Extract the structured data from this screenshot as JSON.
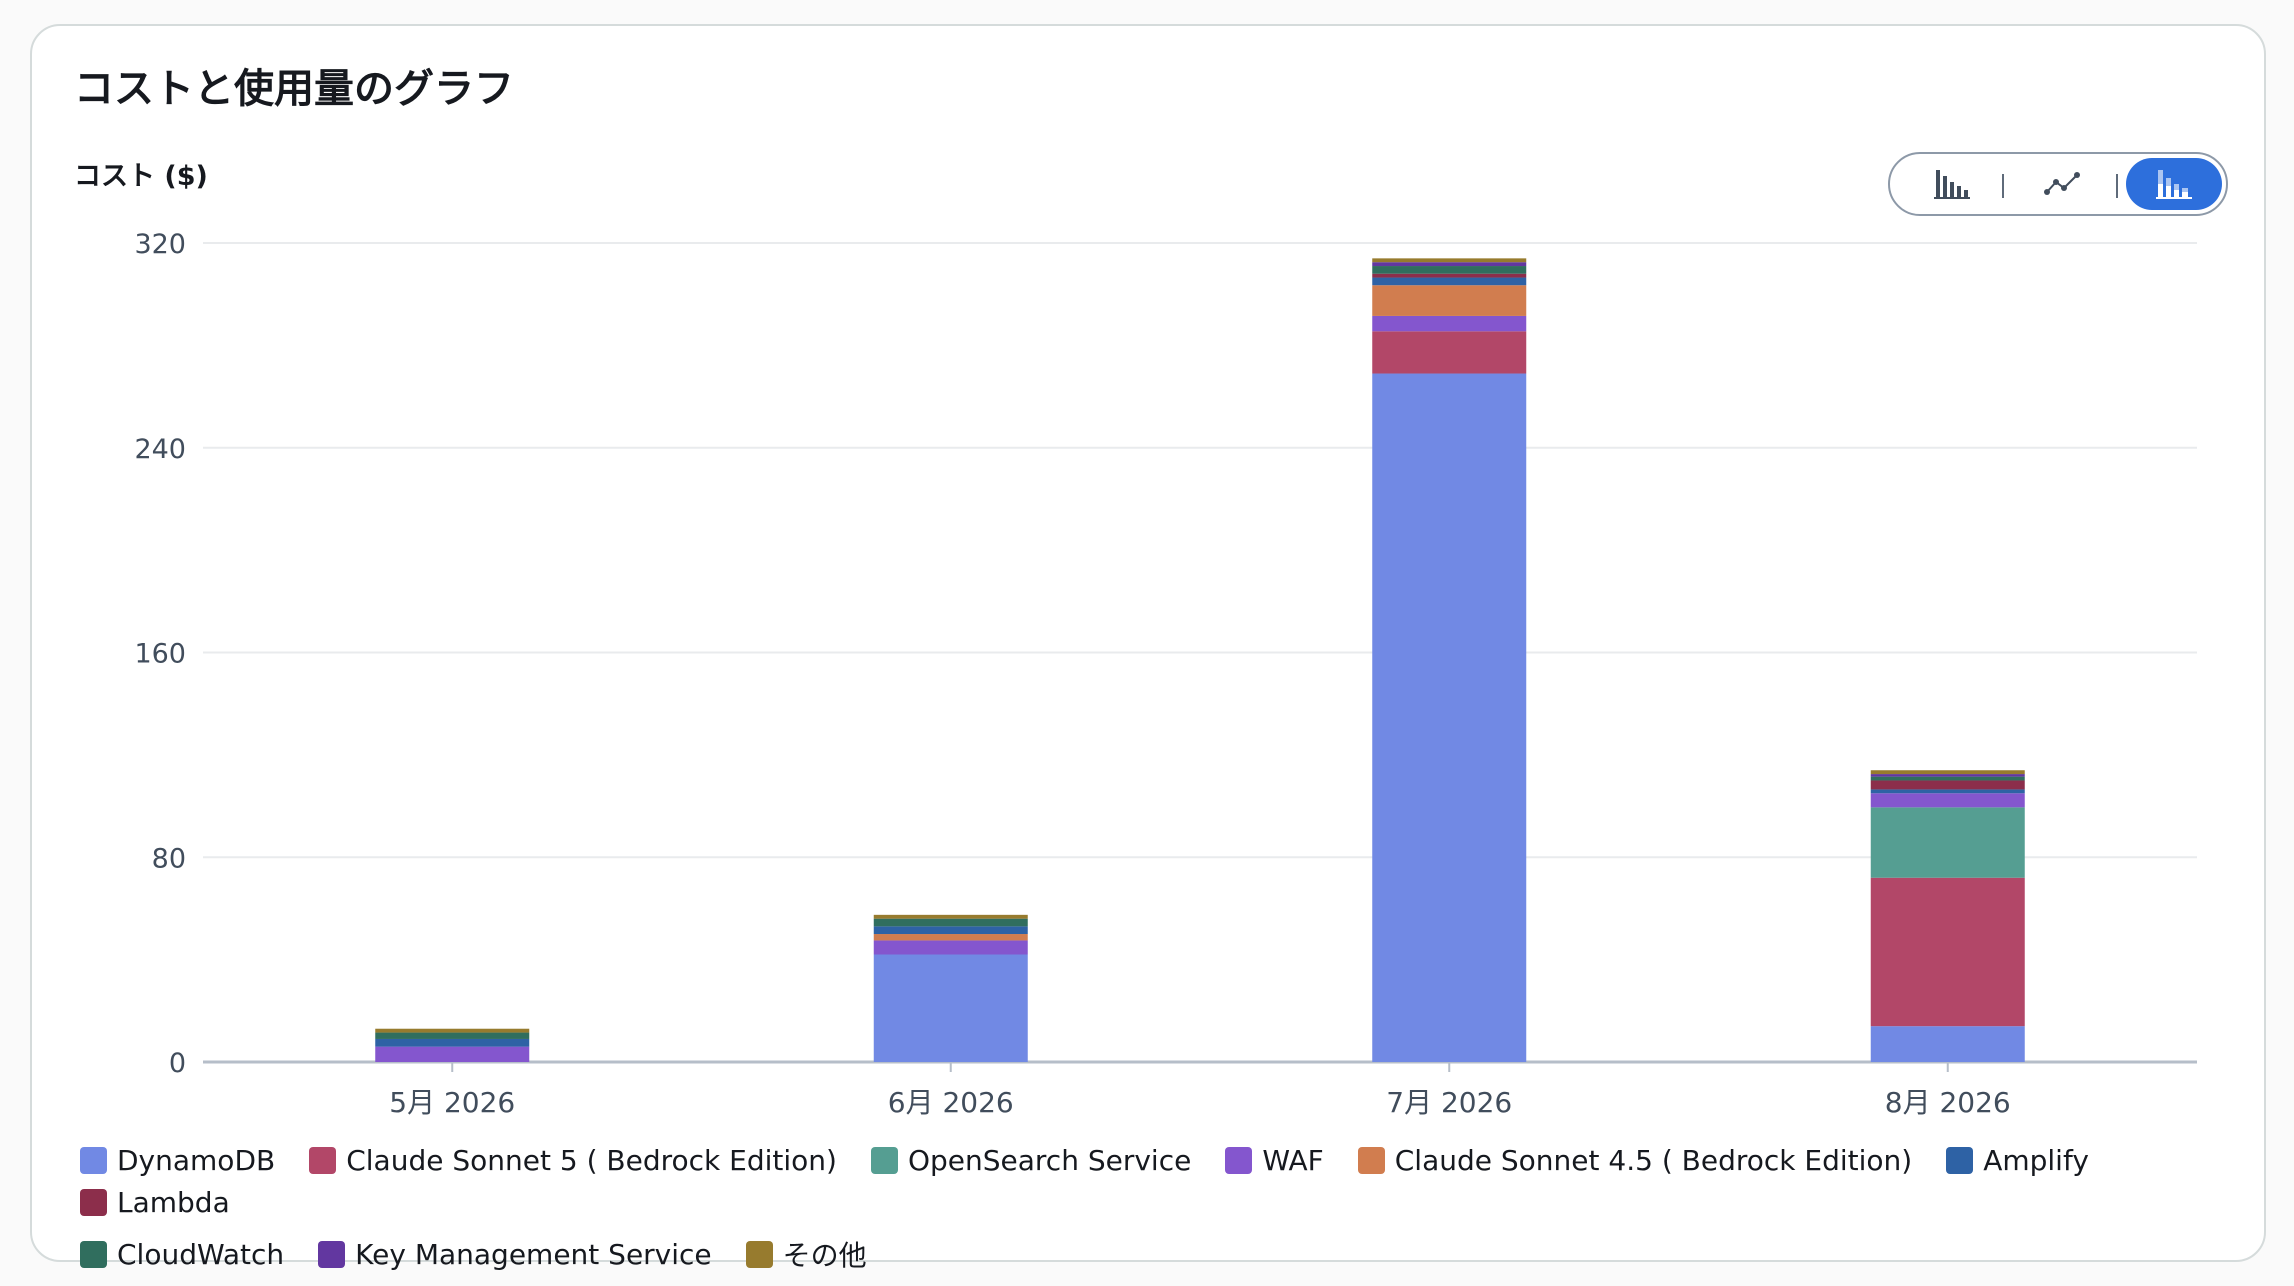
{
  "card": {
    "title": "コストと使用量のグラフ"
  },
  "view_toggle": {
    "options": [
      {
        "icon": "bar-chart-icon",
        "active": false
      },
      {
        "icon": "line-chart-icon",
        "active": false
      },
      {
        "icon": "stacked-bar-chart-icon",
        "active": true
      }
    ],
    "active_color": "#2d6fdc"
  },
  "chart_data": {
    "type": "bar",
    "stacked": true,
    "ylabel": "コスト ($)",
    "xlabel": "",
    "ylim": [
      0,
      320
    ],
    "yticks": [
      0,
      80,
      160,
      240,
      320
    ],
    "grid": true,
    "legend_position": "bottom",
    "categories": [
      "5月 2026",
      "6月 2026",
      "7月 2026",
      "8月 2026"
    ],
    "series": [
      {
        "name": "DynamoDB",
        "color": "#7189e4",
        "values": [
          0,
          42,
          269,
          14
        ]
      },
      {
        "name": "Claude Sonnet 5 ( Bedrock Edition)",
        "color": "#b24768",
        "values": [
          0,
          0,
          16.5,
          58
        ]
      },
      {
        "name": "OpenSearch Service",
        "color": "#559e92",
        "values": [
          0,
          0,
          0,
          27.5
        ]
      },
      {
        "name": "WAF",
        "color": "#8456ce",
        "values": [
          6,
          5.5,
          6,
          5.5
        ]
      },
      {
        "name": "Claude Sonnet 4.5 ( Bedrock Edition)",
        "color": "#d17d4f",
        "values": [
          0,
          2.5,
          12,
          0
        ]
      },
      {
        "name": "Amplify",
        "color": "#2e62a5",
        "values": [
          3,
          3,
          3,
          1.5
        ]
      },
      {
        "name": "Lambda",
        "color": "#8c2e4b",
        "values": [
          0,
          0,
          1.5,
          3.5
        ]
      },
      {
        "name": "CloudWatch",
        "color": "#306e5e",
        "values": [
          2.5,
          3,
          3,
          1.5
        ]
      },
      {
        "name": "Key Management Service",
        "color": "#6237a0",
        "values": [
          0,
          0,
          1.5,
          1
        ]
      },
      {
        "name": "その他",
        "color": "#977b2e",
        "values": [
          1.5,
          1.5,
          1.5,
          1.5
        ]
      }
    ]
  }
}
